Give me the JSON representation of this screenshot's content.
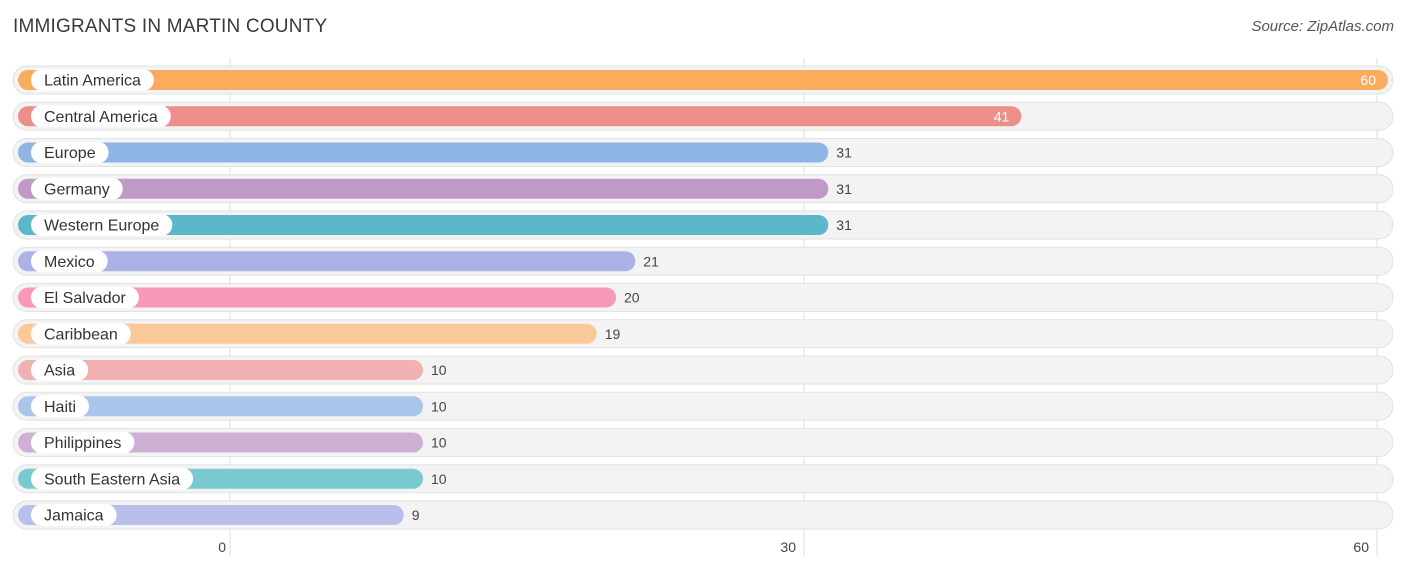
{
  "header": {
    "title": "IMMIGRANTS IN MARTIN COUNTY",
    "source": "Source: ZipAtlas.com"
  },
  "chart_data": {
    "type": "bar",
    "orientation": "horizontal",
    "title": "IMMIGRANTS IN MARTIN COUNTY",
    "categories": [
      "Latin America",
      "Central America",
      "Europe",
      "Germany",
      "Western Europe",
      "Mexico",
      "El Salvador",
      "Caribbean",
      "Asia",
      "Haiti",
      "Philippines",
      "South Eastern Asia",
      "Jamaica"
    ],
    "values": [
      60,
      41,
      31,
      31,
      31,
      21,
      20,
      19,
      10,
      10,
      10,
      10,
      9
    ],
    "colors": [
      "#f9ab5e",
      "#ec8e89",
      "#8eb5e4",
      "#bf9ac6",
      "#5bb8c8",
      "#aab2e8",
      "#f899b8",
      "#f9c99a",
      "#f0b2b1",
      "#a9c6ea",
      "#cdb0d4",
      "#79cad0",
      "#b9bfec"
    ],
    "xticks": [
      0,
      30,
      60
    ],
    "xlim": [
      0,
      60
    ],
    "grid": true,
    "value_labels_inside_threshold": 41
  }
}
